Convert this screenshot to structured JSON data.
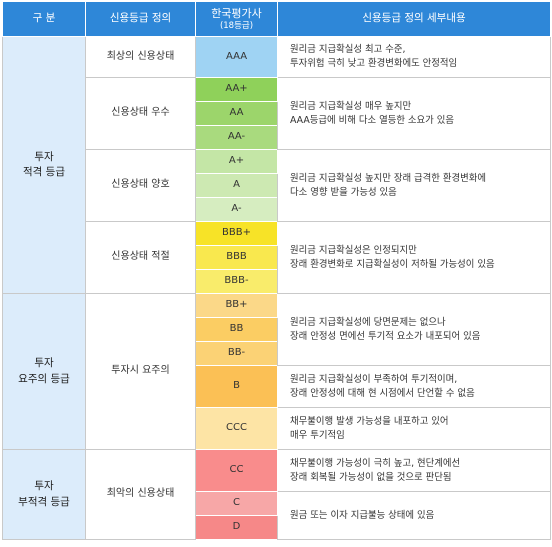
{
  "header": {
    "col_category": "구  분",
    "col_definition": "신용등급 정의",
    "col_agency": "한국평가사",
    "col_agency_sub": "(18등급)",
    "col_detail": "신용등급 정의 세부내용"
  },
  "categories": [
    {
      "line1": "투자",
      "line2": "적격 등급"
    },
    {
      "line1": "투자",
      "line2": "요주의 등급"
    },
    {
      "line1": "투자",
      "line2": "부적격 등급"
    }
  ],
  "definitions": [
    "최상의 신용상태",
    "신용상태 우수",
    "신용상태 양호",
    "신용상태 적절",
    "투자시 요주의",
    "최악의 신용상태"
  ],
  "grades": [
    {
      "label": "AAA",
      "color": "#9fd3f3"
    },
    {
      "label": "AA+",
      "color": "#8fd15a"
    },
    {
      "label": "AA",
      "color": "#9cd56b"
    },
    {
      "label": "AA-",
      "color": "#a9da7e"
    },
    {
      "label": "A+",
      "color": "#c4e6a6"
    },
    {
      "label": "A",
      "color": "#cde9b2"
    },
    {
      "label": "A-",
      "color": "#d6edc0"
    },
    {
      "label": "BBB+",
      "color": "#f7e327"
    },
    {
      "label": "BBB",
      "color": "#f9e84e"
    },
    {
      "label": "BBB-",
      "color": "#f9ec6b"
    },
    {
      "label": "BB+",
      "color": "#fbd888"
    },
    {
      "label": "BB",
      "color": "#fbcd63"
    },
    {
      "label": "BB-",
      "color": "#fbd275"
    },
    {
      "label": "B",
      "color": "#fbc055"
    },
    {
      "label": "CCC",
      "color": "#fde4a5"
    },
    {
      "label": "CC",
      "color": "#f98c8c"
    },
    {
      "label": "C",
      "color": "#f7a7a7"
    },
    {
      "label": "D",
      "color": "#f68888"
    }
  ],
  "details": [
    {
      "line1": "원리금 지급확실성 최고 수준,",
      "line2": "투자위험 극히 낮고 환경변화에도 안정적임"
    },
    {
      "line1": "원리금 지급확실성 매우 높지만",
      "line2": "AAA등급에 비해 다소 열등한 소요가 있음"
    },
    {
      "line1": "원리금 지급확실성 높지만 장래 급격한 환경변화에",
      "line2": "다소 영향 받을 가능성 있음"
    },
    {
      "line1": "원리금 지급확실성은 인정되지만",
      "line2": "장래 환경변화로 지급확실성이 저하될 가능성이 있음"
    },
    {
      "line1": "원리금 지급확실성에 당면문제는 없으나",
      "line2": "장래 안정성 면에선 투기적 요소가 내포되어 있음"
    },
    {
      "line1": "원리금 지급확실성이 부족하여 투기적이며,",
      "line2": "장래 안정성에 대해 현 시점에서 단언할 수 없음"
    },
    {
      "line1": "채무불이행 발생 가능성을 내포하고 있어",
      "line2": "매우 투기적임"
    },
    {
      "line1": "채무불이행 가능성이 극히 높고, 현단계에선",
      "line2": "장래 회복될 가능성이 없을 것으로 판단됨"
    },
    {
      "line1": "원금 또는 이자 지급불능 상태에 있음",
      "line2": ""
    }
  ]
}
